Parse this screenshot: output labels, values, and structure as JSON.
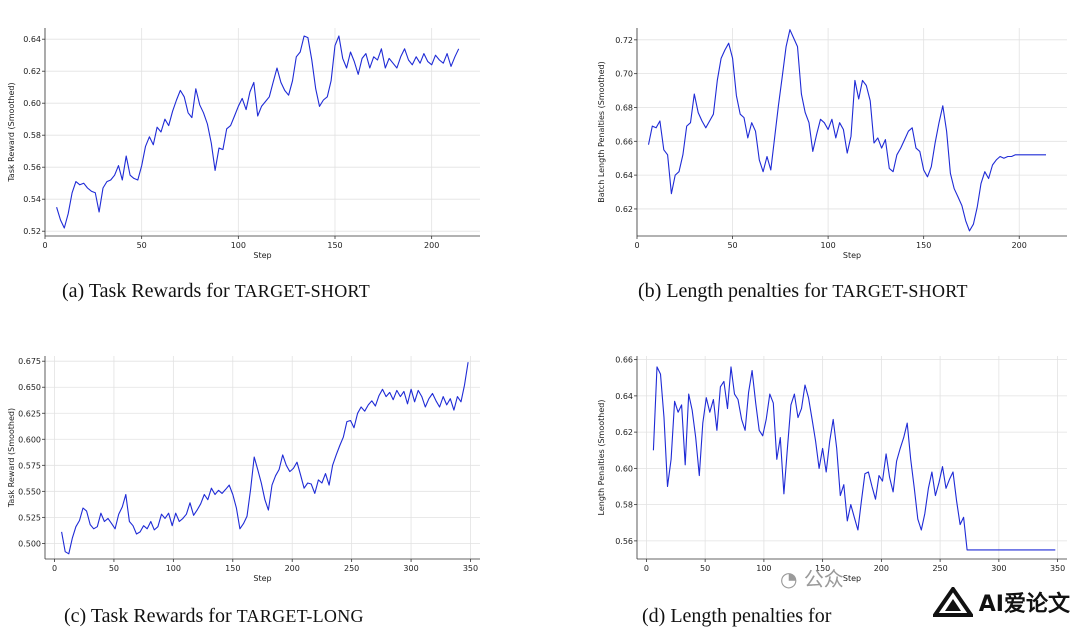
{
  "chart_data": [
    {
      "type": "line",
      "ylabel": "Task Reward (Smoothed)",
      "xlabel": "Step",
      "xlim": [
        0,
        225
      ],
      "ylim": [
        0.517,
        0.647
      ],
      "xticks": [
        0,
        50,
        100,
        150,
        200
      ],
      "yticks": [
        0.52,
        0.54,
        0.56,
        0.58,
        0.6,
        0.62,
        0.64
      ],
      "ytick_decimals": 2,
      "grid": true,
      "color": "#1f2bd6",
      "series": [
        {
          "x": [
            6,
            8,
            10,
            12,
            14,
            16,
            18,
            20,
            22,
            24,
            26,
            28,
            30,
            32,
            34,
            36,
            38,
            40,
            42,
            44,
            46,
            48,
            50,
            52,
            54,
            56,
            58,
            60,
            62,
            64,
            66,
            68,
            70,
            72,
            74,
            76,
            78,
            80,
            82,
            84,
            86,
            88,
            90,
            92,
            94,
            96,
            98,
            100,
            102,
            104,
            106,
            108,
            110,
            112,
            114,
            116,
            118,
            120,
            122,
            124,
            126,
            128,
            130,
            132,
            134,
            136,
            138,
            140,
            142,
            144,
            146,
            148,
            150,
            152,
            154,
            156,
            158,
            160,
            162,
            164,
            166,
            168,
            170,
            172,
            174,
            176,
            178,
            180,
            182,
            184,
            186,
            188,
            190,
            192,
            194,
            196,
            198,
            200,
            202,
            204,
            206,
            208,
            210,
            212,
            214
          ],
          "y": [
            0.535,
            0.527,
            0.522,
            0.531,
            0.544,
            0.551,
            0.549,
            0.55,
            0.547,
            0.545,
            0.544,
            0.532,
            0.547,
            0.551,
            0.552,
            0.555,
            0.561,
            0.552,
            0.567,
            0.555,
            0.553,
            0.552,
            0.561,
            0.573,
            0.579,
            0.574,
            0.585,
            0.582,
            0.59,
            0.586,
            0.595,
            0.602,
            0.608,
            0.604,
            0.594,
            0.591,
            0.609,
            0.599,
            0.594,
            0.587,
            0.575,
            0.558,
            0.572,
            0.571,
            0.584,
            0.586,
            0.592,
            0.598,
            0.603,
            0.596,
            0.607,
            0.613,
            0.592,
            0.598,
            0.601,
            0.604,
            0.613,
            0.622,
            0.613,
            0.608,
            0.605,
            0.614,
            0.629,
            0.632,
            0.642,
            0.641,
            0.627,
            0.609,
            0.598,
            0.602,
            0.604,
            0.614,
            0.636,
            0.642,
            0.628,
            0.622,
            0.632,
            0.626,
            0.618,
            0.628,
            0.631,
            0.622,
            0.629,
            0.627,
            0.634,
            0.622,
            0.628,
            0.625,
            0.622,
            0.629,
            0.634,
            0.627,
            0.624,
            0.629,
            0.625,
            0.631,
            0.626,
            0.624,
            0.63,
            0.627,
            0.625,
            0.631,
            0.623,
            0.629,
            0.634
          ]
        }
      ]
    },
    {
      "type": "line",
      "ylabel": "Batch Length Penalties (Smoothed)",
      "xlabel": "Step",
      "xlim": [
        0,
        225
      ],
      "ylim": [
        0.604,
        0.727
      ],
      "xticks": [
        0,
        50,
        100,
        150,
        200
      ],
      "yticks": [
        0.62,
        0.64,
        0.66,
        0.68,
        0.7,
        0.72
      ],
      "ytick_decimals": 2,
      "grid": true,
      "color": "#1f2bd6",
      "series": [
        {
          "x": [
            6,
            8,
            10,
            12,
            14,
            16,
            18,
            20,
            22,
            24,
            26,
            28,
            30,
            32,
            34,
            36,
            38,
            40,
            42,
            44,
            46,
            48,
            50,
            52,
            54,
            56,
            58,
            60,
            62,
            64,
            66,
            68,
            70,
            72,
            74,
            76,
            78,
            80,
            82,
            84,
            86,
            88,
            90,
            92,
            94,
            96,
            98,
            100,
            102,
            104,
            106,
            108,
            110,
            112,
            114,
            116,
            118,
            120,
            122,
            124,
            126,
            128,
            130,
            132,
            134,
            136,
            138,
            140,
            142,
            144,
            146,
            148,
            150,
            152,
            154,
            156,
            158,
            160,
            162,
            164,
            166,
            168,
            170,
            172,
            174,
            176,
            178,
            180,
            182,
            184,
            186,
            188,
            190,
            192,
            194,
            196,
            198,
            200,
            202,
            204,
            206,
            208,
            210,
            212,
            214
          ],
          "y": [
            0.658,
            0.669,
            0.668,
            0.672,
            0.655,
            0.652,
            0.629,
            0.64,
            0.642,
            0.652,
            0.669,
            0.671,
            0.688,
            0.677,
            0.672,
            0.668,
            0.672,
            0.676,
            0.696,
            0.709,
            0.714,
            0.718,
            0.709,
            0.687,
            0.676,
            0.674,
            0.662,
            0.671,
            0.666,
            0.649,
            0.642,
            0.651,
            0.643,
            0.662,
            0.681,
            0.698,
            0.716,
            0.726,
            0.721,
            0.716,
            0.688,
            0.677,
            0.671,
            0.654,
            0.664,
            0.673,
            0.671,
            0.667,
            0.673,
            0.662,
            0.671,
            0.667,
            0.653,
            0.663,
            0.696,
            0.685,
            0.696,
            0.693,
            0.684,
            0.659,
            0.662,
            0.656,
            0.661,
            0.644,
            0.642,
            0.652,
            0.656,
            0.661,
            0.666,
            0.668,
            0.656,
            0.654,
            0.643,
            0.639,
            0.645,
            0.659,
            0.671,
            0.681,
            0.666,
            0.641,
            0.632,
            0.627,
            0.622,
            0.613,
            0.607,
            0.611,
            0.621,
            0.635,
            0.642,
            0.638,
            0.646,
            0.649,
            0.651,
            0.65,
            0.651,
            0.651,
            0.652,
            0.652,
            0.652,
            0.652,
            0.652,
            0.652,
            0.652,
            0.652,
            0.652
          ]
        }
      ]
    },
    {
      "type": "line",
      "ylabel": "Task Reward (Smoothed)",
      "xlabel": "Step",
      "xlim": [
        -8,
        358
      ],
      "ylim": [
        0.485,
        0.68
      ],
      "xticks": [
        0,
        50,
        100,
        150,
        200,
        250,
        300,
        350
      ],
      "yticks": [
        0.5,
        0.525,
        0.55,
        0.575,
        0.6,
        0.625,
        0.65,
        0.675
      ],
      "ytick_decimals": 3,
      "grid": true,
      "color": "#1f2bd6",
      "series": [
        {
          "x": [
            6,
            9,
            12,
            15,
            18,
            21,
            24,
            27,
            30,
            33,
            36,
            39,
            42,
            45,
            48,
            51,
            54,
            57,
            60,
            63,
            66,
            69,
            72,
            75,
            78,
            81,
            84,
            87,
            90,
            93,
            96,
            99,
            102,
            105,
            108,
            111,
            114,
            117,
            120,
            123,
            126,
            129,
            132,
            135,
            138,
            141,
            144,
            147,
            150,
            153,
            156,
            159,
            162,
            165,
            168,
            171,
            174,
            177,
            180,
            183,
            186,
            189,
            192,
            195,
            198,
            201,
            204,
            207,
            210,
            213,
            216,
            219,
            222,
            225,
            228,
            231,
            234,
            237,
            240,
            243,
            246,
            249,
            252,
            255,
            258,
            261,
            264,
            267,
            270,
            273,
            276,
            279,
            282,
            285,
            288,
            291,
            294,
            297,
            300,
            303,
            306,
            309,
            312,
            315,
            318,
            321,
            324,
            327,
            330,
            333,
            336,
            339,
            342,
            345,
            348
          ],
          "y": [
            0.511,
            0.492,
            0.49,
            0.505,
            0.516,
            0.522,
            0.534,
            0.531,
            0.518,
            0.514,
            0.516,
            0.529,
            0.521,
            0.524,
            0.519,
            0.514,
            0.528,
            0.535,
            0.547,
            0.521,
            0.517,
            0.509,
            0.511,
            0.517,
            0.514,
            0.521,
            0.513,
            0.516,
            0.528,
            0.524,
            0.529,
            0.517,
            0.529,
            0.521,
            0.524,
            0.528,
            0.539,
            0.527,
            0.532,
            0.538,
            0.547,
            0.542,
            0.553,
            0.547,
            0.551,
            0.548,
            0.552,
            0.556,
            0.547,
            0.534,
            0.514,
            0.519,
            0.526,
            0.552,
            0.583,
            0.571,
            0.558,
            0.542,
            0.532,
            0.556,
            0.565,
            0.571,
            0.585,
            0.575,
            0.569,
            0.572,
            0.578,
            0.566,
            0.553,
            0.558,
            0.557,
            0.548,
            0.561,
            0.558,
            0.567,
            0.556,
            0.575,
            0.585,
            0.594,
            0.602,
            0.617,
            0.618,
            0.611,
            0.625,
            0.631,
            0.627,
            0.633,
            0.637,
            0.632,
            0.642,
            0.648,
            0.641,
            0.645,
            0.638,
            0.647,
            0.641,
            0.646,
            0.634,
            0.648,
            0.636,
            0.647,
            0.641,
            0.631,
            0.639,
            0.644,
            0.637,
            0.631,
            0.641,
            0.633,
            0.639,
            0.628,
            0.641,
            0.636,
            0.652,
            0.674
          ]
        }
      ]
    },
    {
      "type": "line",
      "ylabel": "Length Penalties (Smoothed)",
      "xlabel": "Step",
      "xlim": [
        -8,
        358
      ],
      "ylim": [
        0.55,
        0.662
      ],
      "xticks": [
        0,
        50,
        100,
        150,
        200,
        250,
        300,
        350
      ],
      "yticks": [
        0.56,
        0.58,
        0.6,
        0.62,
        0.64,
        0.66
      ],
      "ytick_decimals": 2,
      "grid": true,
      "color": "#1f2bd6",
      "series": [
        {
          "x": [
            6,
            9,
            12,
            15,
            18,
            21,
            24,
            27,
            30,
            33,
            36,
            39,
            42,
            45,
            48,
            51,
            54,
            57,
            60,
            63,
            66,
            69,
            72,
            75,
            78,
            81,
            84,
            87,
            90,
            93,
            96,
            99,
            102,
            105,
            108,
            111,
            114,
            117,
            120,
            123,
            126,
            129,
            132,
            135,
            138,
            141,
            144,
            147,
            150,
            153,
            156,
            159,
            162,
            165,
            168,
            171,
            174,
            177,
            180,
            183,
            186,
            189,
            192,
            195,
            198,
            201,
            204,
            207,
            210,
            213,
            216,
            219,
            222,
            225,
            228,
            231,
            234,
            237,
            240,
            243,
            246,
            249,
            252,
            255,
            258,
            261,
            264,
            267,
            270,
            273,
            276,
            279,
            282,
            285,
            288,
            291,
            294,
            297,
            300,
            303,
            306,
            309,
            312,
            315,
            318,
            321,
            324,
            327,
            330,
            333,
            336,
            339,
            342,
            345,
            348
          ],
          "y": [
            0.61,
            0.656,
            0.652,
            0.628,
            0.59,
            0.605,
            0.637,
            0.631,
            0.635,
            0.602,
            0.641,
            0.632,
            0.617,
            0.596,
            0.625,
            0.639,
            0.631,
            0.638,
            0.621,
            0.645,
            0.648,
            0.633,
            0.656,
            0.641,
            0.638,
            0.627,
            0.621,
            0.642,
            0.654,
            0.636,
            0.621,
            0.618,
            0.627,
            0.641,
            0.636,
            0.605,
            0.617,
            0.586,
            0.611,
            0.635,
            0.641,
            0.628,
            0.633,
            0.646,
            0.639,
            0.627,
            0.615,
            0.6,
            0.611,
            0.598,
            0.615,
            0.627,
            0.611,
            0.585,
            0.591,
            0.571,
            0.58,
            0.573,
            0.566,
            0.582,
            0.597,
            0.598,
            0.59,
            0.583,
            0.596,
            0.593,
            0.608,
            0.595,
            0.587,
            0.604,
            0.611,
            0.617,
            0.625,
            0.605,
            0.589,
            0.572,
            0.566,
            0.575,
            0.589,
            0.598,
            0.585,
            0.592,
            0.601,
            0.589,
            0.594,
            0.598,
            0.582,
            0.569,
            0.573,
            0.555,
            0.555,
            0.555,
            0.555,
            0.555,
            0.555,
            0.555,
            0.555,
            0.555,
            0.555,
            0.555,
            0.555,
            0.555,
            0.555,
            0.555,
            0.555,
            0.555,
            0.555,
            0.555,
            0.555,
            0.555,
            0.555,
            0.555,
            0.555,
            0.555,
            0.555
          ]
        }
      ]
    }
  ],
  "captions": [
    {
      "prefix": "(a) Task Rewards for ",
      "sc": "TARGET-SHORT"
    },
    {
      "prefix": "(b) Length penalties for ",
      "sc": "TARGET-SHORT"
    },
    {
      "prefix": "(c) Task Rewards for ",
      "sc": "TARGET-LONG"
    },
    {
      "prefix": "(d) Length penalties for",
      "sc": ""
    }
  ],
  "watermark": {
    "text": "AI爱论文",
    "faded": "公众"
  }
}
